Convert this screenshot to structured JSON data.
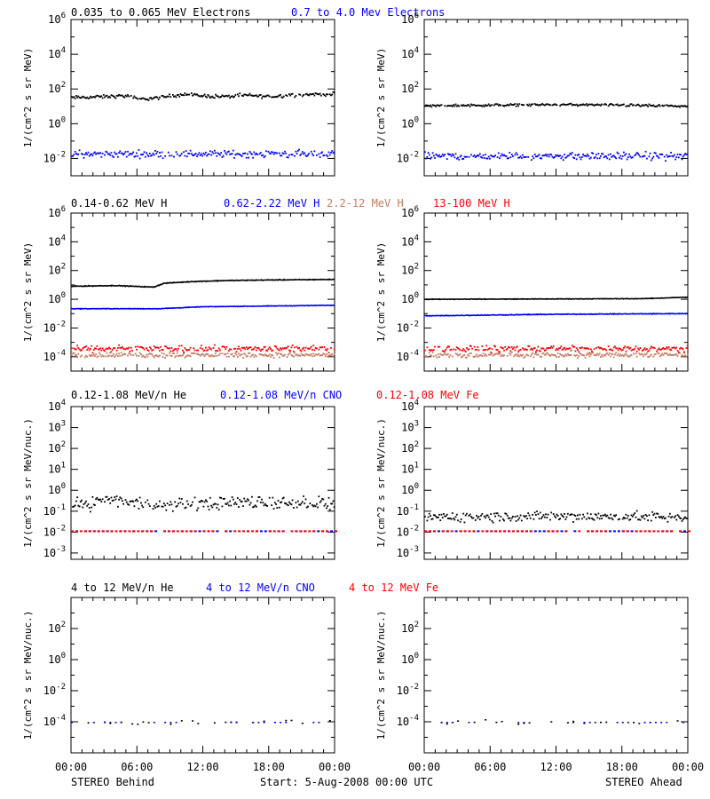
{
  "figure": {
    "footer": {
      "left": "STEREO Behind",
      "center": "Start:  5-Aug-2008 00:00 UTC",
      "right": "STEREO Ahead"
    },
    "x_tick_labels": [
      "00:00",
      "06:00",
      "12:00",
      "18:00",
      "00:00"
    ]
  },
  "chart_data": [
    {
      "row": 0,
      "panel": "STEREO Behind",
      "type": "scatter",
      "ylabel": "1/(cm^2 s sr MeV)",
      "yscale": "log",
      "ylim": [
        0.001,
        1000000
      ],
      "y_ticks": [
        {
          "exp": -2
        },
        {
          "exp": 0
        },
        {
          "exp": 2
        },
        {
          "exp": 4
        },
        {
          "exp": 6
        }
      ],
      "xlim": [
        "00:00",
        "24:00"
      ],
      "series_titles": [
        {
          "name": "0.035 to 0.065 MeV Electrons",
          "color": "#000000"
        },
        {
          "name": "0.7 to 4.0 Mev Electrons",
          "color": "#0000ff"
        }
      ],
      "series": [
        {
          "color": "#000000",
          "style": "dots",
          "knots": [
            [
              0,
              35
            ],
            [
              3,
              40
            ],
            [
              5,
              45
            ],
            [
              6,
              28
            ],
            [
              8,
              35
            ],
            [
              10,
              55
            ],
            [
              12,
              45
            ],
            [
              14,
              40
            ],
            [
              16,
              48
            ],
            [
              18,
              40
            ],
            [
              20,
              50
            ],
            [
              22,
              55
            ],
            [
              24,
              55
            ]
          ],
          "scatter": 0.15
        },
        {
          "color": "#0000ff",
          "style": "dots",
          "knots": [
            [
              0,
              0.02
            ],
            [
              24,
              0.02
            ]
          ],
          "scatter": 0.3
        }
      ]
    },
    {
      "row": 0,
      "panel": "STEREO Ahead",
      "type": "scatter",
      "ylabel": "1/(cm^2 s sr MeV)",
      "yscale": "log",
      "ylim": [
        0.001,
        1000000
      ],
      "y_ticks": [
        {
          "exp": -2
        },
        {
          "exp": 0
        },
        {
          "exp": 2
        },
        {
          "exp": 4
        },
        {
          "exp": 6
        }
      ],
      "xlim": [
        "00:00",
        "24:00"
      ],
      "series_titles": [],
      "series": [
        {
          "color": "#000000",
          "style": "dots",
          "knots": [
            [
              0,
              12
            ],
            [
              6,
              13
            ],
            [
              12,
              14
            ],
            [
              18,
              13
            ],
            [
              24,
              11
            ]
          ],
          "scatter": 0.1
        },
        {
          "color": "#0000ff",
          "style": "dots",
          "knots": [
            [
              0,
              0.015
            ],
            [
              24,
              0.015
            ]
          ],
          "scatter": 0.3
        }
      ]
    },
    {
      "row": 1,
      "panel": "STEREO Behind",
      "type": "scatter",
      "ylabel": "1/(cm^2 s sr MeV)",
      "yscale": "log",
      "ylim": [
        1e-05,
        1000000
      ],
      "y_ticks": [
        {
          "exp": -4
        },
        {
          "exp": -2
        },
        {
          "exp": 0
        },
        {
          "exp": 2
        },
        {
          "exp": 4
        },
        {
          "exp": 6
        }
      ],
      "xlim": [
        "00:00",
        "24:00"
      ],
      "series_titles": [
        {
          "name": "0.14-0.62 MeV H",
          "color": "#000000"
        },
        {
          "name": "0.62-2.22 MeV H",
          "color": "#0000ff"
        },
        {
          "name": "2.2-12 MeV H",
          "color": "#c87a60"
        },
        {
          "name": "13-100 MeV H",
          "color": "#ff0000"
        }
      ],
      "series": [
        {
          "color": "#000000",
          "style": "line",
          "knots": [
            [
              0,
              8
            ],
            [
              4,
              9
            ],
            [
              7.5,
              7
            ],
            [
              8.5,
              13
            ],
            [
              11,
              17
            ],
            [
              14,
              20
            ],
            [
              18,
              22
            ],
            [
              24,
              24
            ]
          ],
          "scatter": 0.04
        },
        {
          "color": "#0000ff",
          "style": "line",
          "knots": [
            [
              0,
              0.22
            ],
            [
              8,
              0.22
            ],
            [
              12,
              0.3
            ],
            [
              24,
              0.38
            ]
          ],
          "scatter": 0.03
        },
        {
          "color": "#c87a60",
          "style": "dots",
          "knots": [
            [
              0,
              0.00015
            ],
            [
              24,
              0.00015
            ]
          ],
          "scatter": 0.25
        },
        {
          "color": "#ff0000",
          "style": "dots",
          "knots": [
            [
              0,
              0.0004
            ],
            [
              24,
              0.0004
            ]
          ],
          "scatter": 0.3
        }
      ]
    },
    {
      "row": 1,
      "panel": "STEREO Ahead",
      "type": "scatter",
      "ylabel": "1/(cm^2 s sr MeV)",
      "yscale": "log",
      "ylim": [
        1e-05,
        1000000
      ],
      "y_ticks": [
        {
          "exp": -4
        },
        {
          "exp": -2
        },
        {
          "exp": 0
        },
        {
          "exp": 2
        },
        {
          "exp": 4
        },
        {
          "exp": 6
        }
      ],
      "xlim": [
        "00:00",
        "24:00"
      ],
      "series_titles": [],
      "series": [
        {
          "color": "#000000",
          "style": "line",
          "knots": [
            [
              0,
              1.0
            ],
            [
              12,
              1.05
            ],
            [
              20,
              1.1
            ],
            [
              24,
              1.4
            ]
          ],
          "scatter": 0.03
        },
        {
          "color": "#0000ff",
          "style": "line",
          "knots": [
            [
              0,
              0.07
            ],
            [
              12,
              0.09
            ],
            [
              24,
              0.1
            ]
          ],
          "scatter": 0.04
        },
        {
          "color": "#c87a60",
          "style": "dots",
          "knots": [
            [
              0,
              0.00015
            ],
            [
              24,
              0.00015
            ]
          ],
          "scatter": 0.25
        },
        {
          "color": "#ff0000",
          "style": "dots",
          "knots": [
            [
              0,
              0.0004
            ],
            [
              24,
              0.0004
            ]
          ],
          "scatter": 0.3
        }
      ]
    },
    {
      "row": 2,
      "panel": "STEREO Behind",
      "type": "scatter",
      "ylabel": "1/(cm^2 s sr MeV/nuc.)",
      "yscale": "log",
      "ylim": [
        0.0005,
        10000
      ],
      "y_ticks": [
        {
          "exp": -3
        },
        {
          "exp": -2
        },
        {
          "exp": -1
        },
        {
          "exp": 0
        },
        {
          "exp": 1
        },
        {
          "exp": 2
        },
        {
          "exp": 3
        },
        {
          "exp": 4
        }
      ],
      "xlim": [
        "00:00",
        "24:00"
      ],
      "series_titles": [
        {
          "name": "0.12-1.08 MeV/n He",
          "color": "#000000"
        },
        {
          "name": "0.12-1.08 MeV/n CNO",
          "color": "#0000ff"
        },
        {
          "name": "0.12-1.08 MeV Fe",
          "color": "#ff0000"
        }
      ],
      "series": [
        {
          "color": "#000000",
          "style": "dots",
          "knots": [
            [
              0,
              0.2
            ],
            [
              4,
              0.4
            ],
            [
              8,
              0.2
            ],
            [
              12,
              0.25
            ],
            [
              16,
              0.3
            ],
            [
              20,
              0.3
            ],
            [
              24,
              0.25
            ]
          ],
          "scatter": 0.45
        },
        {
          "color": "#0000ff",
          "style": "dash",
          "knots": [
            [
              0,
              0.011
            ],
            [
              24,
              0.011
            ]
          ],
          "scatter": 0
        },
        {
          "color": "#ff0000",
          "style": "dash",
          "knots": [
            [
              0,
              0.011
            ],
            [
              24,
              0.011
            ]
          ],
          "scatter": 0
        }
      ]
    },
    {
      "row": 2,
      "panel": "STEREO Ahead",
      "type": "scatter",
      "ylabel": "1/(cm^2 s sr MeV/nuc.)",
      "yscale": "log",
      "ylim": [
        0.0005,
        10000
      ],
      "y_ticks": [
        {
          "exp": -3
        },
        {
          "exp": -2
        },
        {
          "exp": -1
        },
        {
          "exp": 0
        },
        {
          "exp": 1
        },
        {
          "exp": 2
        },
        {
          "exp": 3
        },
        {
          "exp": 4
        }
      ],
      "xlim": [
        "00:00",
        "24:00"
      ],
      "series_titles": [],
      "series": [
        {
          "color": "#000000",
          "style": "dots",
          "knots": [
            [
              0,
              0.06
            ],
            [
              24,
              0.06
            ]
          ],
          "scatter": 0.35
        },
        {
          "color": "#0000ff",
          "style": "dash",
          "knots": [
            [
              0,
              0.011
            ],
            [
              24,
              0.011
            ]
          ],
          "scatter": 0
        },
        {
          "color": "#ff0000",
          "style": "dash",
          "knots": [
            [
              0,
              0.011
            ],
            [
              24,
              0.011
            ]
          ],
          "scatter": 0
        }
      ]
    },
    {
      "row": 3,
      "panel": "STEREO Behind",
      "type": "scatter",
      "ylabel": "1/(cm^2 s sr MeV/nuc.)",
      "yscale": "log",
      "ylim": [
        1e-06,
        10000
      ],
      "y_ticks": [
        {
          "exp": -4
        },
        {
          "exp": -2
        },
        {
          "exp": 0
        },
        {
          "exp": 2
        }
      ],
      "xlim": [
        "00:00",
        "24:00"
      ],
      "series_titles": [
        {
          "name": "4 to 12 MeV/n He",
          "color": "#000000"
        },
        {
          "name": "4 to 12 MeV/n CNO",
          "color": "#0000ff"
        },
        {
          "name": "4 to 12 MeV Fe",
          "color": "#ff0000"
        }
      ],
      "series": [
        {
          "color": "#000000",
          "style": "sparse",
          "knots": [
            [
              0,
              0.0001
            ],
            [
              24,
              0.0001
            ]
          ],
          "scatter": 0.1
        },
        {
          "color": "#0000ff",
          "style": "sparse",
          "knots": [
            [
              0,
              0.0001
            ],
            [
              24,
              0.0001
            ]
          ],
          "scatter": 0
        }
      ]
    },
    {
      "row": 3,
      "panel": "STEREO Ahead",
      "type": "scatter",
      "ylabel": "1/(cm^2 s sr MeV/nuc.)",
      "yscale": "log",
      "ylim": [
        1e-06,
        10000
      ],
      "y_ticks": [
        {
          "exp": -4
        },
        {
          "exp": -2
        },
        {
          "exp": 0
        },
        {
          "exp": 2
        }
      ],
      "xlim": [
        "00:00",
        "24:00"
      ],
      "series_titles": [],
      "series": [
        {
          "color": "#000000",
          "style": "sparse",
          "knots": [
            [
              0,
              0.0001
            ],
            [
              24,
              0.0001
            ]
          ],
          "scatter": 0.1
        },
        {
          "color": "#0000ff",
          "style": "sparse",
          "knots": [
            [
              0,
              0.0001
            ],
            [
              24,
              0.0001
            ]
          ],
          "scatter": 0
        }
      ]
    }
  ]
}
